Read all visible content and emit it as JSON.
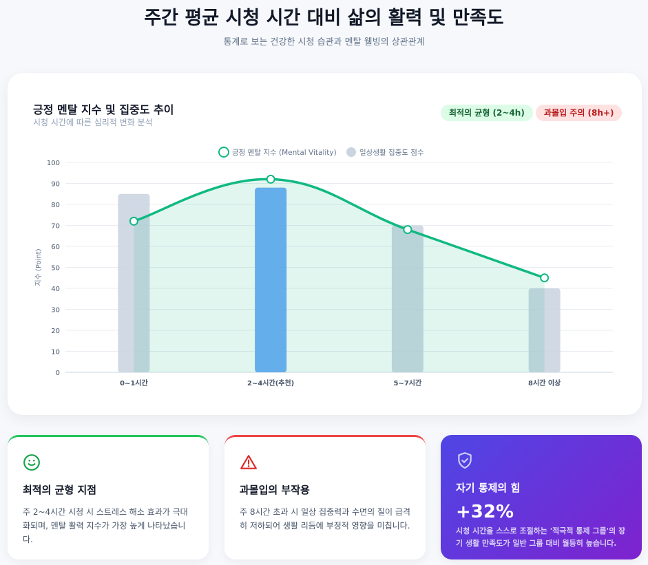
{
  "header": {
    "title": "주간 평균 시청 시간 대비 삶의 활력 및 만족도",
    "subtitle": "통계로 보는 건강한 시청 습관과 멘탈 웰빙의 상관관계"
  },
  "chart_card": {
    "title": "긍정 멘탈 지수 및 집중도 추이",
    "subtitle": "시청 시간에 따른 심리적 변화 분석",
    "badges": [
      "최적의 균형 (2~4h)",
      "과몰입 주의 (8h+)"
    ]
  },
  "chart_data": {
    "type": "bar+line",
    "categories": [
      "0~1시간",
      "2~4시간(추천)",
      "5~7시간",
      "8시간 이상"
    ],
    "series": [
      {
        "name": "긍정 멘탈 지수 (Mental Vitality)",
        "type": "line",
        "values": [
          72,
          92,
          68,
          45
        ],
        "color": "#10b981"
      },
      {
        "name": "일상생활 집중도 점수",
        "type": "bar",
        "values": [
          85,
          88,
          70,
          40
        ],
        "color": "#cbd5e1",
        "highlight_color": "#60a5fa"
      }
    ],
    "ylabel": "지수 (Point)",
    "ylim": [
      0,
      100
    ],
    "yticks": [
      0,
      10,
      20,
      30,
      40,
      50,
      60,
      70,
      80,
      90,
      100
    ],
    "grid": true,
    "legend": "top-center"
  },
  "cards": [
    {
      "icon": "smile-icon",
      "title": "최적의 균형 지점",
      "text": "주 2~4시간 시청 시 스트레스 해소 효과가 극대화되며, 멘탈 활력 지수가 가장 높게 나타났습니다."
    },
    {
      "icon": "warning-icon",
      "title": "과몰입의 부작용",
      "text": "주 8시간 초과 시 일상 집중력과 수면의 질이 급격히 저하되어 생활 리듬에 부정적 영향을 미칩니다."
    },
    {
      "icon": "shield-check-icon",
      "title": "자기 통제의 힘",
      "value": "+32%",
      "text": "시청 시간을 스스로 조절하는 '적극적 통제 그룹'의 장기 생활 만족도가 일반 그룹 대비 월등히 높습니다."
    }
  ]
}
